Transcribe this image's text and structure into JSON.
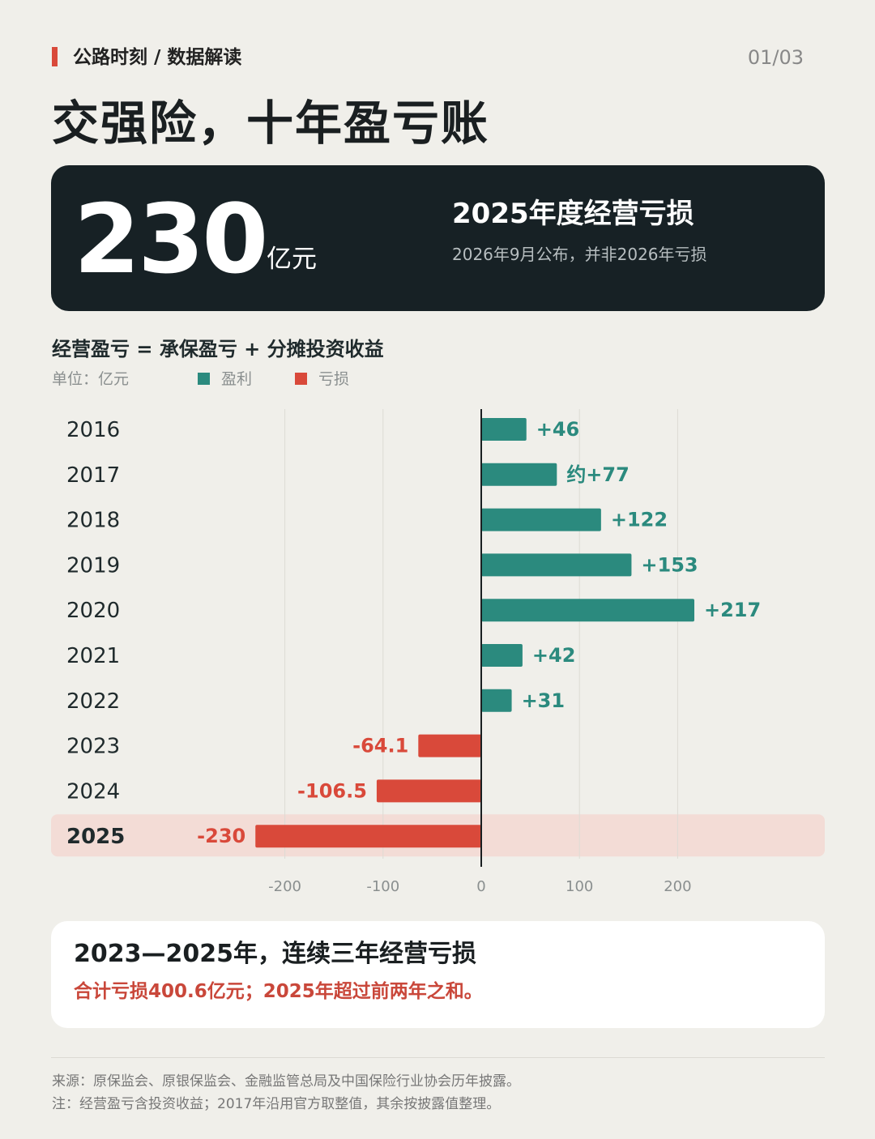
{
  "header": {
    "breadcrumb": "公路时刻 / 数据解读",
    "page_indicator": "01/03",
    "title": "交强险，十年盈亏账"
  },
  "kpi": {
    "value": "230",
    "unit": "亿元",
    "heading": "2025年度经营亏损",
    "note": "2026年9月公布，并非2026年亏损"
  },
  "chart_section": {
    "formula": "经营盈亏 = 承保盈亏 + 分摊投资收益",
    "unit_label": "单位：亿元",
    "legend": [
      {
        "label": "盈利",
        "color": "#2b8a7e"
      },
      {
        "label": "亏损",
        "color": "#d9493a"
      }
    ]
  },
  "chart_data": {
    "type": "bar",
    "orientation": "horizontal",
    "categories": [
      "2016",
      "2017",
      "2018",
      "2019",
      "2020",
      "2021",
      "2022",
      "2023",
      "2024",
      "2025"
    ],
    "values": [
      46,
      77,
      122,
      153,
      217,
      42,
      31,
      -64.1,
      -106.5,
      -230
    ],
    "data_labels": [
      "+46",
      "约+77",
      "+122",
      "+153",
      "+217",
      "+42",
      "+31",
      "-64.1",
      "-106.5",
      "-230"
    ],
    "highlighted_category": "2025",
    "x_ticks": [
      -200,
      -100,
      0,
      100,
      200
    ],
    "xlim": [
      -230,
      230
    ],
    "grid": true,
    "colors": {
      "profit": "#2b8a7e",
      "loss": "#d9493a",
      "highlight_band": "#f3dcd6"
    }
  },
  "summary": {
    "title": "2023—2025年，连续三年经营亏损",
    "subtitle": "合计亏损400.6亿元；2025年超过前两年之和。"
  },
  "footer": {
    "source": "来源：原保监会、原银保监会、金融监管总局及中国保险行业协会历年披露。",
    "note": "注：经营盈亏含投资收益；2017年沿用官方取整值，其余按披露值整理。"
  }
}
